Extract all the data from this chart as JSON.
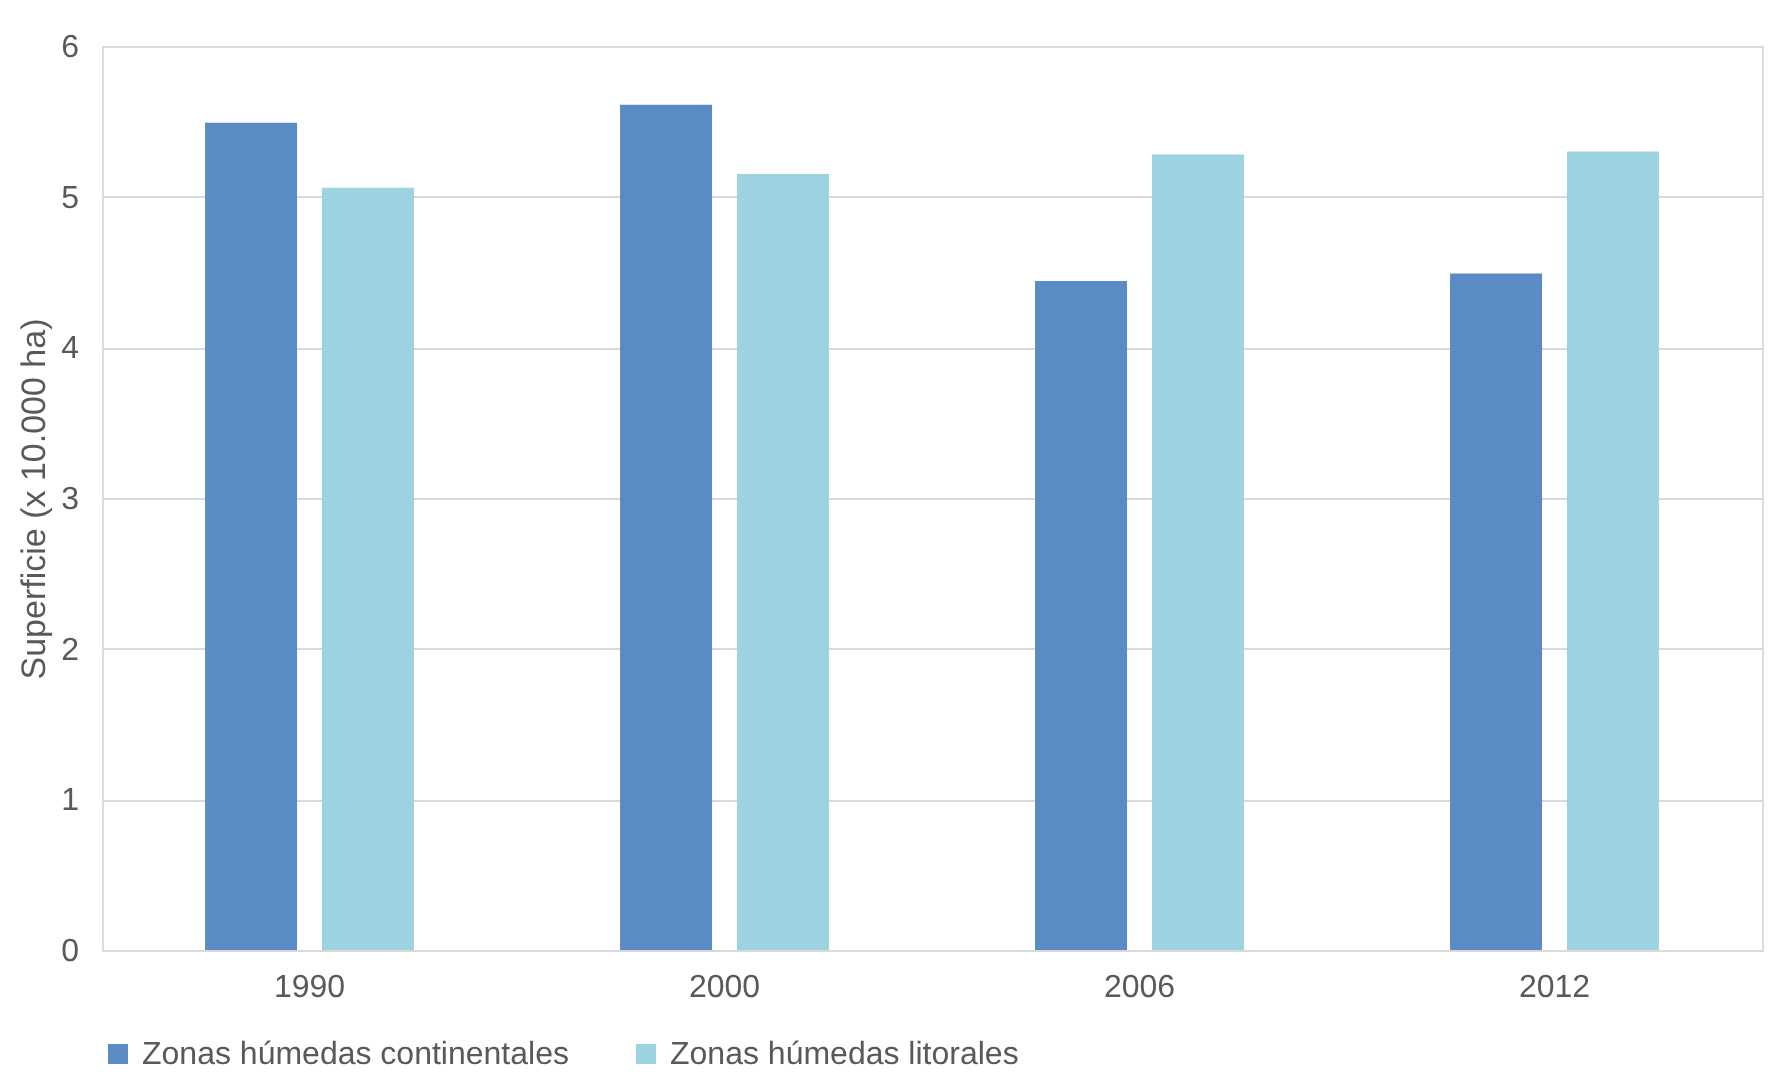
{
  "chart_data": {
    "type": "bar",
    "ylabel": "Superficie (x 10.000 ha)",
    "categories": [
      "1990",
      "2000",
      "2006",
      "2012"
    ],
    "series": [
      {
        "name": "Zonas húmedas continentales",
        "color": "#5b8bc4",
        "values": [
          5.49,
          5.61,
          4.44,
          4.49
        ]
      },
      {
        "name": "Zonas húmedas litorales",
        "color": "#9dd2e0",
        "values": [
          5.06,
          5.15,
          5.28,
          5.3
        ]
      }
    ],
    "ylim": [
      0,
      6
    ],
    "yticks": [
      0,
      1,
      2,
      3,
      4,
      5,
      6
    ],
    "grid": "y",
    "legend": "bottom"
  }
}
